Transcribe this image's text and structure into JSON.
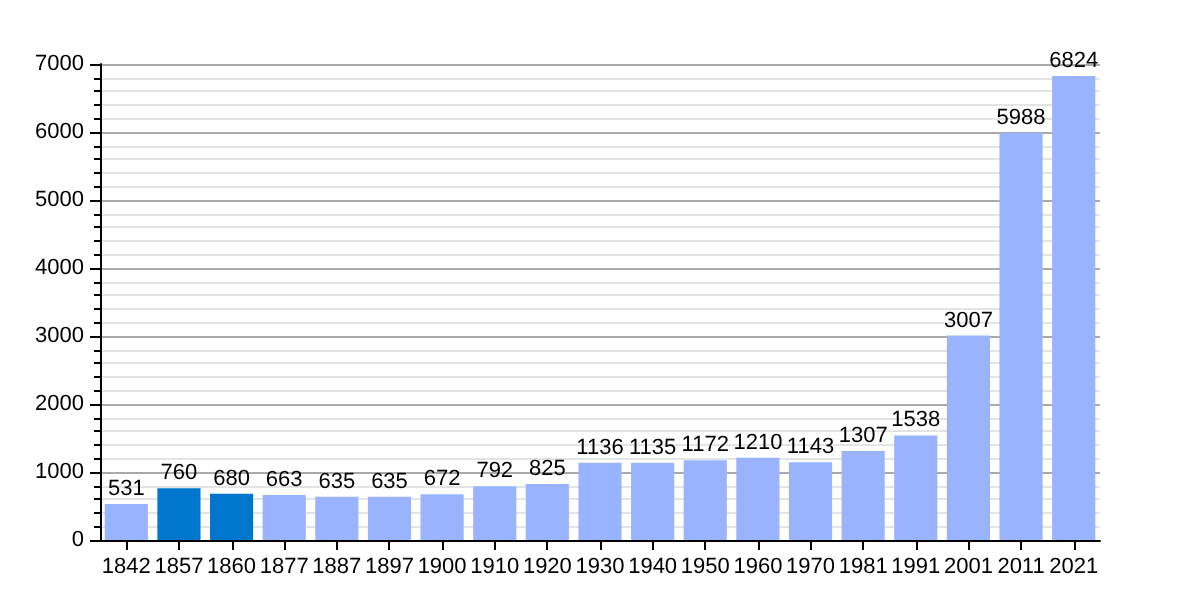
{
  "chart_data": {
    "type": "bar",
    "categories": [
      "1842",
      "1857",
      "1860",
      "1877",
      "1887",
      "1897",
      "1900",
      "1910",
      "1920",
      "1930",
      "1940",
      "1950",
      "1960",
      "1970",
      "1981",
      "1991",
      "2001",
      "2011",
      "2021"
    ],
    "values": [
      531,
      760,
      680,
      663,
      635,
      635,
      672,
      792,
      825,
      1136,
      1135,
      1172,
      1210,
      1143,
      1307,
      1538,
      3007,
      5988,
      6824
    ],
    "colors": [
      "#99b3ff",
      "#0077cc",
      "#0077cc",
      "#99b3ff",
      "#99b3ff",
      "#99b3ff",
      "#99b3ff",
      "#99b3ff",
      "#99b3ff",
      "#99b3ff",
      "#99b3ff",
      "#99b3ff",
      "#99b3ff",
      "#99b3ff",
      "#99b3ff",
      "#99b3ff",
      "#99b3ff",
      "#99b3ff",
      "#99b3ff"
    ],
    "ylim": [
      0,
      7000
    ],
    "yticks": [
      0,
      1000,
      2000,
      3000,
      4000,
      5000,
      6000,
      7000
    ],
    "grid": "y",
    "data_labels": true
  }
}
